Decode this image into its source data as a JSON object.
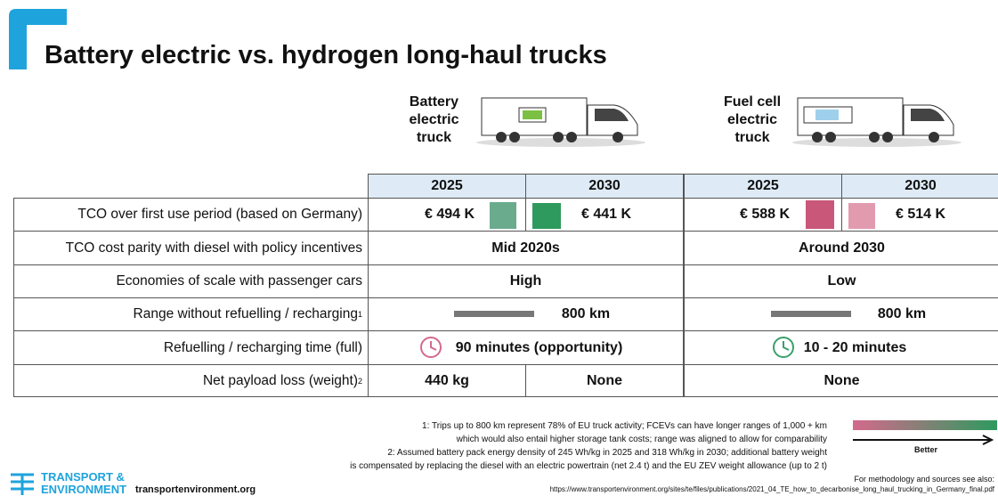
{
  "header": {
    "title": "Battery electric vs. hydrogen long-haul trucks"
  },
  "trucks": [
    {
      "label": [
        "Battery",
        "electric",
        "truck"
      ]
    },
    {
      "label": [
        "Fuel cell",
        "electric",
        "truck"
      ]
    }
  ],
  "table": {
    "years": [
      "2025",
      "2030",
      "2025",
      "2030"
    ],
    "rows": [
      {
        "label": "TCO over first use period (based on Germany)",
        "cells": [
          "€ 494 K",
          "€ 441 K",
          "€ 588 K",
          "€ 514 K"
        ]
      },
      {
        "label": "TCO cost parity with diesel with policy incentives",
        "cells": [
          "Mid 2020s",
          "Around 2030"
        ]
      },
      {
        "label": "Economies of scale with passenger cars",
        "cells": [
          "High",
          "Low"
        ]
      },
      {
        "label": "Range without refuelling / recharging",
        "note": "1",
        "cells": [
          "800 km",
          "800 km"
        ]
      },
      {
        "label": "Refuelling / recharging time (full)",
        "cells": [
          "90 minutes (opportunity)",
          "10 - 20 minutes"
        ]
      },
      {
        "label": "Net payload loss (weight)",
        "note": "2",
        "cells": [
          "440 kg",
          "None",
          "None"
        ]
      }
    ]
  },
  "footnotes": [
    "1: Trips up to 800 km represent 78% of EU truck activity; FCEVs can have longer ranges of 1,000 + km",
    "which would also entail higher storage tank costs; range was aligned to allow for comparability",
    "2: Assumed battery pack energy density of 245 Wh/kg in 2025 and 318 Wh/kg in 2030; additional battery weight",
    "is compensated by replacing the diesel with an electric powertrain (net 2.4 t) and the EU ZEV weight allowance (up to 2 t)"
  ],
  "legend": {
    "label": "Better"
  },
  "footer": {
    "brand": [
      "TRANSPORT &",
      "ENVIRONMENT"
    ],
    "site": "transportenvironment.org",
    "sources": "For methodology and sources see also:",
    "url": "https://www.transportenvironment.org/sites/te/files/publications/2021_04_TE_how_to_decarbonise_long_haul_trucking_in_Germany_final.pdf"
  }
}
